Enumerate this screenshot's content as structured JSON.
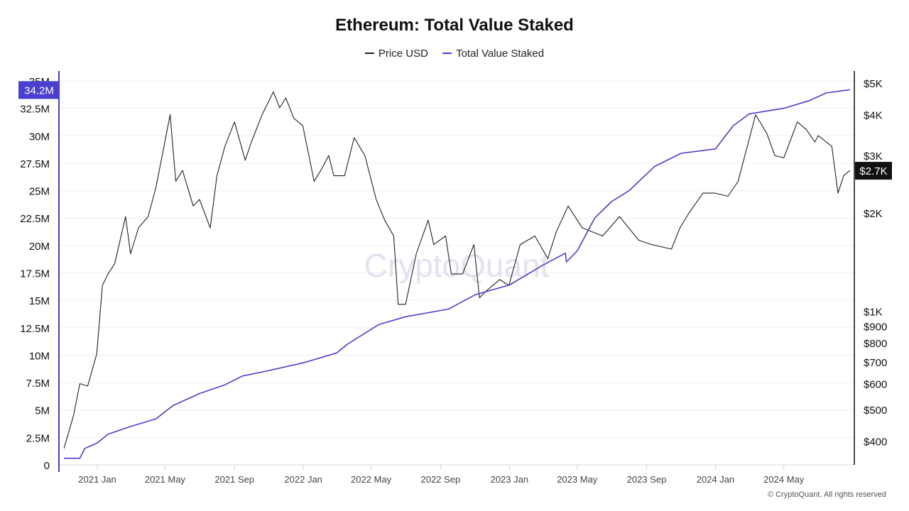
{
  "chart_data": {
    "type": "line",
    "title": "Ethereum: Total Value Staked",
    "watermark": "CryptoQuant",
    "copyright": "© CryptoQuant. All rights reserved",
    "legend_position": "top-center",
    "grid": true,
    "x_axis": {
      "type": "date",
      "range": [
        "2020-11-03",
        "2024-08-26"
      ],
      "tick_labels": [
        "2021 Jan",
        "2021 May",
        "2021 Sep",
        "2022 Jan",
        "2022 May",
        "2022 Sep",
        "2023 Jan",
        "2023 May",
        "2023 Sep",
        "2024 Jan",
        "2024 May"
      ],
      "tick_dates": [
        "2021-01-01",
        "2021-05-01",
        "2021-09-01",
        "2022-01-01",
        "2022-05-01",
        "2022-09-01",
        "2023-01-01",
        "2023-05-01",
        "2023-09-01",
        "2024-01-01",
        "2024-05-01"
      ]
    },
    "y_left": {
      "range": [
        0,
        35000000
      ],
      "tick_labels": [
        "0",
        "2.5M",
        "5M",
        "7.5M",
        "10M",
        "12.5M",
        "15M",
        "17.5M",
        "20M",
        "22.5M",
        "25M",
        "27.5M",
        "30M",
        "32.5M",
        "35M"
      ],
      "tick_values": [
        0,
        2500000,
        5000000,
        7500000,
        10000000,
        12500000,
        15000000,
        17500000,
        20000000,
        22500000,
        25000000,
        27500000,
        30000000,
        32500000,
        35000000
      ],
      "current_label": "34.2M",
      "current_value": 34200000
    },
    "y_right": {
      "scale": "log",
      "range": [
        330,
        5500
      ],
      "tick_labels": [
        "$400",
        "$500",
        "$600",
        "$700",
        "$800",
        "$900",
        "$1K",
        "$2K",
        "$3K",
        "$4K",
        "$5K"
      ],
      "tick_values": [
        400,
        500,
        600,
        700,
        800,
        900,
        1000,
        2000,
        3000,
        4000,
        5000
      ],
      "current_label": "$2.7K",
      "current_value": 2700
    },
    "series": [
      {
        "name": "Price USD",
        "color": "#222222",
        "axis": "right",
        "points": [
          [
            "2020-11-03",
            380
          ],
          [
            "2020-11-20",
            480
          ],
          [
            "2020-12-01",
            600
          ],
          [
            "2020-12-15",
            590
          ],
          [
            "2020-12-31",
            740
          ],
          [
            "2021-01-10",
            1200
          ],
          [
            "2021-01-20",
            1300
          ],
          [
            "2021-02-01",
            1400
          ],
          [
            "2021-02-20",
            1950
          ],
          [
            "2021-03-01",
            1500
          ],
          [
            "2021-03-15",
            1800
          ],
          [
            "2021-04-01",
            1950
          ],
          [
            "2021-04-15",
            2400
          ],
          [
            "2021-05-10",
            4000
          ],
          [
            "2021-05-20",
            2500
          ],
          [
            "2021-06-01",
            2700
          ],
          [
            "2021-06-20",
            2100
          ],
          [
            "2021-07-01",
            2200
          ],
          [
            "2021-07-20",
            1800
          ],
          [
            "2021-08-01",
            2600
          ],
          [
            "2021-08-15",
            3200
          ],
          [
            "2021-09-01",
            3800
          ],
          [
            "2021-09-20",
            2900
          ],
          [
            "2021-10-01",
            3300
          ],
          [
            "2021-10-20",
            4000
          ],
          [
            "2021-11-09",
            4700
          ],
          [
            "2021-11-20",
            4200
          ],
          [
            "2021-12-01",
            4500
          ],
          [
            "2021-12-15",
            3900
          ],
          [
            "2021-12-31",
            3700
          ],
          [
            "2022-01-20",
            2500
          ],
          [
            "2022-02-01",
            2700
          ],
          [
            "2022-02-15",
            3000
          ],
          [
            "2022-02-24",
            2600
          ],
          [
            "2022-03-15",
            2600
          ],
          [
            "2022-04-01",
            3400
          ],
          [
            "2022-04-20",
            3000
          ],
          [
            "2022-05-10",
            2200
          ],
          [
            "2022-05-25",
            1900
          ],
          [
            "2022-06-10",
            1700
          ],
          [
            "2022-06-18",
            1050
          ],
          [
            "2022-07-01",
            1050
          ],
          [
            "2022-07-20",
            1500
          ],
          [
            "2022-08-10",
            1900
          ],
          [
            "2022-08-20",
            1600
          ],
          [
            "2022-09-10",
            1700
          ],
          [
            "2022-09-20",
            1300
          ],
          [
            "2022-10-10",
            1300
          ],
          [
            "2022-10-30",
            1600
          ],
          [
            "2022-11-09",
            1100
          ],
          [
            "2022-11-20",
            1150
          ],
          [
            "2022-12-15",
            1250
          ],
          [
            "2022-12-31",
            1200
          ],
          [
            "2023-01-20",
            1600
          ],
          [
            "2023-02-15",
            1700
          ],
          [
            "2023-03-10",
            1450
          ],
          [
            "2023-03-25",
            1750
          ],
          [
            "2023-04-15",
            2100
          ],
          [
            "2023-05-10",
            1800
          ],
          [
            "2023-06-15",
            1700
          ],
          [
            "2023-07-15",
            1950
          ],
          [
            "2023-08-18",
            1650
          ],
          [
            "2023-09-10",
            1600
          ],
          [
            "2023-10-15",
            1550
          ],
          [
            "2023-10-30",
            1800
          ],
          [
            "2023-11-15",
            2000
          ],
          [
            "2023-12-10",
            2300
          ],
          [
            "2023-12-31",
            2300
          ],
          [
            "2024-01-23",
            2250
          ],
          [
            "2024-02-10",
            2500
          ],
          [
            "2024-03-12",
            4000
          ],
          [
            "2024-04-01",
            3500
          ],
          [
            "2024-04-15",
            3000
          ],
          [
            "2024-05-01",
            2950
          ],
          [
            "2024-05-25",
            3800
          ],
          [
            "2024-06-10",
            3600
          ],
          [
            "2024-06-25",
            3300
          ],
          [
            "2024-07-01",
            3450
          ],
          [
            "2024-07-25",
            3200
          ],
          [
            "2024-08-05",
            2300
          ],
          [
            "2024-08-15",
            2600
          ],
          [
            "2024-08-26",
            2700
          ]
        ]
      },
      {
        "name": "Total Value Staked",
        "color": "#4b3fd1",
        "axis": "left",
        "points": [
          [
            "2020-11-03",
            600000
          ],
          [
            "2020-12-01",
            600000
          ],
          [
            "2020-12-10",
            1500000
          ],
          [
            "2021-01-01",
            2000000
          ],
          [
            "2021-01-20",
            2800000
          ],
          [
            "2021-03-01",
            3500000
          ],
          [
            "2021-04-15",
            4200000
          ],
          [
            "2021-05-15",
            5400000
          ],
          [
            "2021-07-01",
            6500000
          ],
          [
            "2021-08-15",
            7300000
          ],
          [
            "2021-09-15",
            8100000
          ],
          [
            "2021-11-01",
            8600000
          ],
          [
            "2022-01-01",
            9300000
          ],
          [
            "2022-03-01",
            10200000
          ],
          [
            "2022-03-20",
            11000000
          ],
          [
            "2022-05-15",
            12800000
          ],
          [
            "2022-07-01",
            13500000
          ],
          [
            "2022-09-15",
            14200000
          ],
          [
            "2022-11-01",
            15500000
          ],
          [
            "2023-01-01",
            16400000
          ],
          [
            "2023-03-01",
            18200000
          ],
          [
            "2023-04-10",
            19300000
          ],
          [
            "2023-04-12",
            18500000
          ],
          [
            "2023-05-01",
            19500000
          ],
          [
            "2023-06-01",
            22500000
          ],
          [
            "2023-07-01",
            24000000
          ],
          [
            "2023-08-01",
            25000000
          ],
          [
            "2023-09-15",
            27200000
          ],
          [
            "2023-11-01",
            28400000
          ],
          [
            "2024-01-01",
            28800000
          ],
          [
            "2024-02-01",
            30900000
          ],
          [
            "2024-03-01",
            32000000
          ],
          [
            "2024-05-01",
            32500000
          ],
          [
            "2024-06-15",
            33200000
          ],
          [
            "2024-07-15",
            33900000
          ],
          [
            "2024-08-26",
            34200000
          ]
        ]
      }
    ]
  }
}
